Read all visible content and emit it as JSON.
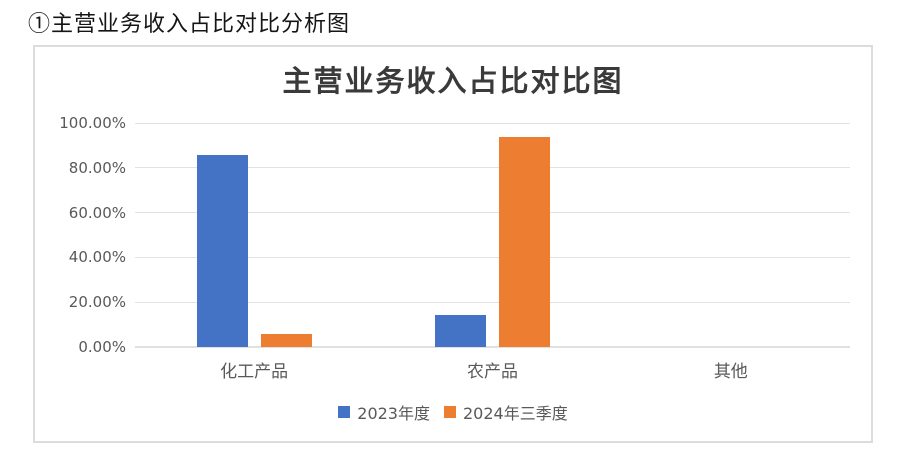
{
  "page": {
    "heading": "①主营业务收入占比对比分析图"
  },
  "chart_data": {
    "type": "bar",
    "title": "主营业务收入占比对比图",
    "categories": [
      "化工产品",
      "农产品",
      "其他"
    ],
    "series": [
      {
        "name": "2023年度",
        "color": "#4472C4",
        "values": [
          85.7,
          14.5,
          0
        ]
      },
      {
        "name": "2024年三季度",
        "color": "#ED7D31",
        "values": [
          5.8,
          93.8,
          0
        ]
      }
    ],
    "ylabel": "",
    "xlabel": "",
    "ylim": [
      0,
      100
    ],
    "yticks": [
      {
        "value": 0,
        "label": "0.00%"
      },
      {
        "value": 20,
        "label": "20.00%"
      },
      {
        "value": 40,
        "label": "40.00%"
      },
      {
        "value": 60,
        "label": "60.00%"
      },
      {
        "value": 80,
        "label": "80.00%"
      },
      {
        "value": 100,
        "label": "100.00%"
      }
    ],
    "grid": true,
    "legend_position": "bottom"
  },
  "style": {
    "grid_color": "#E2E2E2",
    "axis_text_color": "#595959",
    "panel_border_color": "#DCDCDC",
    "title_color": "#3A3A3A"
  }
}
